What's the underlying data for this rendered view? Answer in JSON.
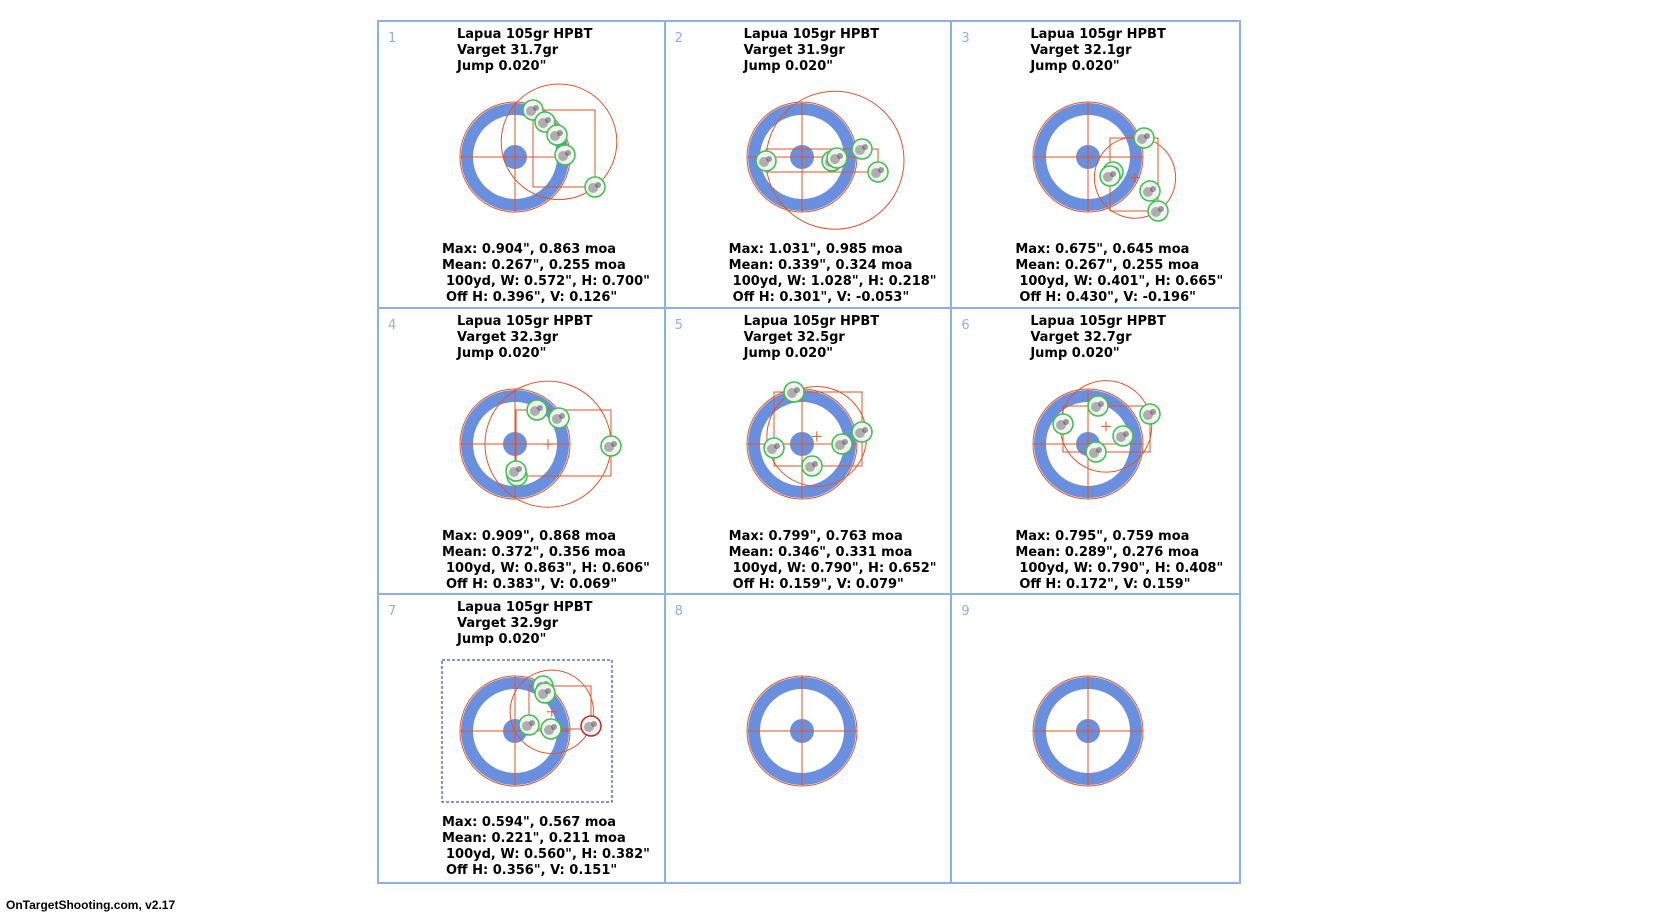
{
  "footer": "OnTargetShooting.com, v2.17",
  "colors": {
    "grid_line": "#8db1e6",
    "ring": "#6b8fdf",
    "crosshair": "#e0562a",
    "shot_outline": "#3ac24a",
    "selected_shot_outline": "#c42a2a",
    "selection_box": "#1a2a9a"
  },
  "targets": [
    {
      "number": "1",
      "title": "Lapua 105gr HPBT",
      "charge": "Varget 31.7gr",
      "jump": "Jump 0.020\"",
      "max": "Max: 0.904\", 0.863 moa",
      "mean": "Mean: 0.267\", 0.255 moa",
      "size": "100yd,  W: 0.572\", H: 0.700\"",
      "offset": "Off H: 0.396\", V: 0.126\""
    },
    {
      "number": "2",
      "title": "Lapua 105gr HPBT",
      "charge": "Varget 31.9gr",
      "jump": "Jump 0.020\"",
      "max": "Max: 1.031\", 0.985 moa",
      "mean": "Mean: 0.339\", 0.324 moa",
      "size": "100yd,  W: 1.028\", H: 0.218\"",
      "offset": "Off H: 0.301\", V: -0.053\""
    },
    {
      "number": "3",
      "title": "Lapua 105gr HPBT",
      "charge": "Varget 32.1gr",
      "jump": "Jump 0.020\"",
      "max": "Max: 0.675\", 0.645 moa",
      "mean": "Mean: 0.267\", 0.255 moa",
      "size": "100yd,  W: 0.401\", H: 0.665\"",
      "offset": "Off H: 0.430\", V: -0.196\""
    },
    {
      "number": "4",
      "title": "Lapua 105gr HPBT",
      "charge": "Varget 32.3gr",
      "jump": "Jump 0.020\"",
      "max": "Max: 0.909\", 0.868 moa",
      "mean": "Mean: 0.372\", 0.356 moa",
      "size": "100yd,  W: 0.863\", H: 0.606\"",
      "offset": "Off H: 0.383\", V: 0.069\""
    },
    {
      "number": "5",
      "title": "Lapua 105gr HPBT",
      "charge": "Varget 32.5gr",
      "jump": "Jump 0.020\"",
      "max": "Max: 0.799\", 0.763 moa",
      "mean": "Mean: 0.346\", 0.331 moa",
      "size": "100yd,  W: 0.790\", H: 0.652\"",
      "offset": "Off H: 0.159\", V: 0.079\""
    },
    {
      "number": "6",
      "title": "Lapua 105gr HPBT",
      "charge": "Varget 32.7gr",
      "jump": "Jump 0.020\"",
      "max": "Max: 0.795\", 0.759 moa",
      "mean": "Mean: 0.289\", 0.276 moa",
      "size": "100yd,  W: 0.790\", H: 0.408\"",
      "offset": "Off H: 0.172\", V: 0.159\""
    },
    {
      "number": "7",
      "title": "Lapua 105gr HPBT",
      "charge": "Varget 32.9gr",
      "jump": "Jump 0.020\"",
      "max": "Max: 0.594\", 0.567 moa",
      "mean": "Mean: 0.221\", 0.211 moa",
      "size": "100yd,  W: 0.560\", H: 0.382\"",
      "offset": "Off H: 0.356\", V: 0.151\"",
      "selected": true
    },
    {
      "number": "8"
    },
    {
      "number": "9"
    }
  ]
}
